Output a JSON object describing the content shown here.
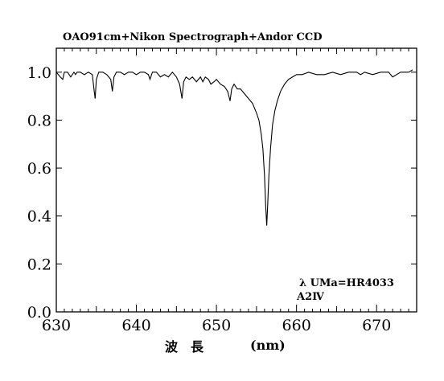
{
  "chart_data": {
    "type": "line",
    "title": "OAO91cm+Nikon Spectrograph+Andor CCD",
    "xlabel": "波　長",
    "xlabel_unit": "(nm)",
    "ylabel": "",
    "xlim": [
      630,
      675
    ],
    "ylim": [
      0.0,
      1.1
    ],
    "xticks": [
      630,
      640,
      650,
      660,
      670
    ],
    "yticks": [
      0.0,
      0.2,
      0.4,
      0.6,
      0.8,
      1.0
    ],
    "xtick_labels": [
      "630",
      "640",
      "650",
      "660",
      "670"
    ],
    "ytick_labels": [
      "0.0",
      "0.2",
      "0.4",
      "0.6",
      "0.8",
      "1.0"
    ],
    "grid": false,
    "annotations": [
      "λ UMa=HR4033",
      "A2Ⅳ"
    ],
    "series": [
      {
        "color": "#000000",
        "x": [
          630.0,
          630.5,
          630.8,
          631.0,
          631.4,
          631.8,
          632.2,
          632.4,
          632.6,
          633.0,
          633.5,
          634.0,
          634.5,
          634.7,
          634.85,
          635.0,
          635.3,
          635.8,
          636.3,
          636.8,
          637.0,
          637.2,
          637.5,
          638.0,
          638.5,
          639.0,
          639.5,
          640.0,
          640.5,
          641.0,
          641.5,
          641.7,
          642.0,
          642.5,
          643.0,
          643.5,
          644.0,
          644.5,
          645.0,
          645.4,
          645.7,
          645.9,
          646.2,
          646.6,
          647.0,
          647.5,
          648.0,
          648.3,
          648.6,
          649.0,
          649.3,
          649.7,
          650.0,
          650.5,
          651.0,
          651.4,
          651.7,
          651.9,
          652.2,
          652.6,
          653.0,
          653.5,
          654.0,
          654.5,
          655.0,
          655.3,
          655.6,
          655.8,
          656.0,
          656.15,
          656.28,
          656.4,
          656.55,
          656.75,
          657.0,
          657.3,
          657.6,
          658.0,
          658.5,
          659.0,
          659.5,
          660.0,
          660.7,
          661.5,
          662.5,
          663.5,
          664.5,
          665.5,
          666.5,
          667.5,
          668.0,
          668.5,
          669.5,
          670.5,
          671.5,
          672.0,
          672.5,
          673.0,
          673.5,
          674.0,
          674.5
        ],
        "y": [
          1.0,
          0.98,
          0.97,
          1.0,
          1.0,
          0.98,
          1.0,
          0.99,
          1.0,
          1.0,
          0.99,
          1.0,
          0.99,
          0.93,
          0.89,
          0.97,
          1.0,
          1.0,
          0.99,
          0.97,
          0.92,
          0.98,
          1.0,
          1.0,
          0.99,
          1.0,
          1.0,
          0.99,
          1.0,
          1.0,
          0.99,
          0.97,
          1.0,
          1.0,
          0.98,
          0.99,
          0.98,
          1.0,
          0.98,
          0.95,
          0.89,
          0.96,
          0.98,
          0.97,
          0.98,
          0.96,
          0.98,
          0.96,
          0.98,
          0.97,
          0.95,
          0.96,
          0.97,
          0.95,
          0.94,
          0.92,
          0.88,
          0.93,
          0.95,
          0.93,
          0.93,
          0.91,
          0.89,
          0.87,
          0.83,
          0.8,
          0.74,
          0.68,
          0.57,
          0.44,
          0.36,
          0.45,
          0.57,
          0.68,
          0.78,
          0.84,
          0.88,
          0.92,
          0.95,
          0.97,
          0.98,
          0.99,
          0.99,
          1.0,
          0.99,
          0.99,
          1.0,
          0.99,
          1.0,
          1.0,
          0.99,
          1.0,
          0.99,
          1.0,
          1.0,
          0.98,
          0.99,
          1.0,
          1.0,
          1.0,
          1.01
        ]
      }
    ]
  }
}
